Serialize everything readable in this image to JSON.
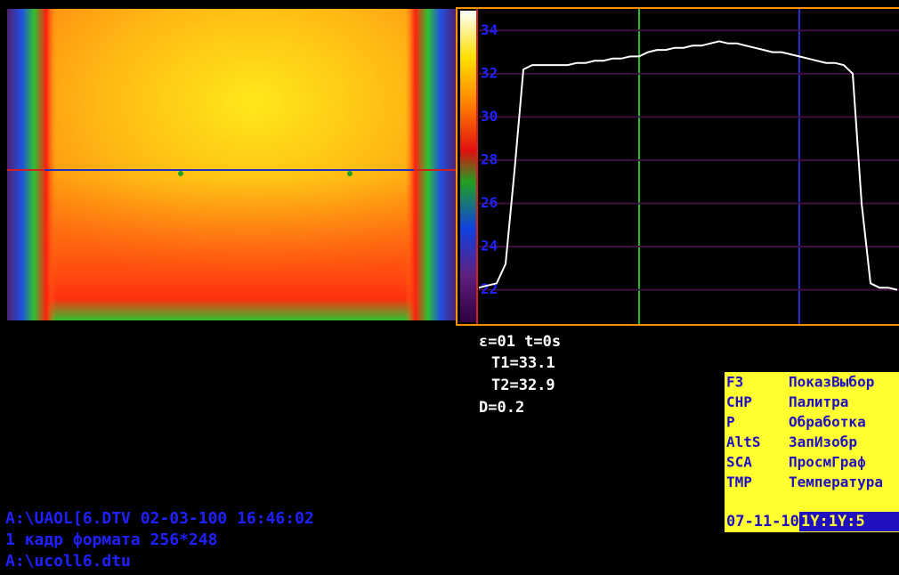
{
  "profile": {
    "type": "line",
    "color": "#ffffff",
    "ylim": [
      20.5,
      35
    ],
    "yticks": [
      22,
      24,
      26,
      28,
      30,
      32,
      34
    ],
    "grid": true,
    "values": [
      22.1,
      22.2,
      22.3,
      23.2,
      27.5,
      32.2,
      32.4,
      32.4,
      32.4,
      32.4,
      32.4,
      32.5,
      32.5,
      32.6,
      32.6,
      32.7,
      32.7,
      32.8,
      32.8,
      33,
      33.1,
      33.1,
      33.2,
      33.2,
      33.3,
      33.3,
      33.4,
      33.5,
      33.4,
      33.4,
      33.3,
      33.2,
      33.1,
      33,
      33,
      32.9,
      32.8,
      32.7,
      32.6,
      32.5,
      32.5,
      32.4,
      32,
      26,
      22.3,
      22.1,
      22.1,
      22
    ]
  },
  "readout": [
    "ε=01 t=0s",
    "T1=33.1",
    "T2=32.9",
    "D=0.2"
  ],
  "status": [
    "A:\\UAOL[6.DTV 02-03-100 16:46:02",
    "1 кадр формата 256*248",
    "A:\\ucoll6.dtu"
  ],
  "menu": [
    {
      "key": "F3",
      "label": "ПоказВыбор"
    },
    {
      "key": "CHP",
      "label": "Палитра"
    },
    {
      "key": "P",
      "label": "Обработка"
    },
    {
      "key": "AltS",
      "label": "ЗапИзобр"
    },
    {
      "key": "SCA",
      "label": "ПросмГраф"
    },
    {
      "key": "TMP",
      "label": "Температура"
    }
  ],
  "date": "07-11-10",
  "time": "1Y:1Y:5"
}
